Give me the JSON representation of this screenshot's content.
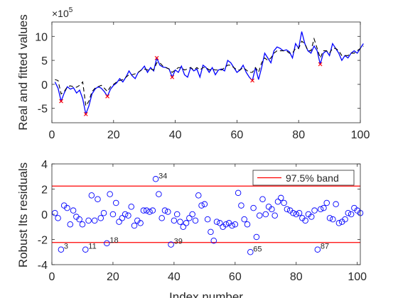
{
  "chart_data": [
    {
      "type": "line",
      "ylabel": "Real and fitted values",
      "multiplier_text": "×10",
      "multiplier_exp": "5",
      "xlim": [
        0,
        100
      ],
      "ylim": [
        -8,
        13
      ],
      "xticks": [
        0,
        20,
        40,
        60,
        80,
        100
      ],
      "yticks": [
        -5,
        0,
        5,
        10
      ],
      "tick_labels_x": [
        "0",
        "20",
        "40",
        "60",
        "80",
        "100"
      ],
      "tick_labels_y": [
        "-5",
        "0",
        "5",
        "10"
      ],
      "series": [
        {
          "style": "solid",
          "color": "#0000ff",
          "values": [
            0.5,
            -0.8,
            -3.5,
            -1.8,
            -0.5,
            -1.0,
            -0.7,
            -1.8,
            -1.2,
            -3.0,
            -6.2,
            -4.5,
            -2.0,
            -1.0,
            -0.5,
            -0.8,
            -1.5,
            -2.5,
            -1.0,
            -0.2,
            0.3,
            1.2,
            0.5,
            1.5,
            2.8,
            1.8,
            1.2,
            2.5,
            3.0,
            3.8,
            2.5,
            3.5,
            2.8,
            5.5,
            4.0,
            3.6,
            3.5,
            3.2,
            1.5,
            3.0,
            2.5,
            3.8,
            2.0,
            1.5,
            3.5,
            2.8,
            3.2,
            1.5,
            4.0,
            3.5,
            2.5,
            3.5,
            2.0,
            3.0,
            3.2,
            2.8,
            5.0,
            4.5,
            3.5,
            2.5,
            3.0,
            4.0,
            2.5,
            1.5,
            0.8,
            3.5,
            1.0,
            3.5,
            6.5,
            5.5,
            4.5,
            7.0,
            7.8,
            7.5,
            7.0,
            7.2,
            6.8,
            5.5,
            8.5,
            7.5,
            11.0,
            8.5,
            7.0,
            6.5,
            8.0,
            7.0,
            4.2,
            6.5,
            7.0,
            6.0,
            8.5,
            7.5,
            6.5,
            5.0,
            6.0,
            5.5,
            6.5,
            7.0,
            6.5,
            7.5,
            8.5
          ]
        },
        {
          "style": "dashed",
          "color": "#000000",
          "values": [
            1.0,
            0.8,
            -2.0,
            -1.5,
            -0.5,
            -0.3,
            -0.5,
            -0.6,
            -0.2,
            0.5,
            -4.5,
            -3.5,
            -1.5,
            -0.8,
            -0.5,
            -0.2,
            -0.8,
            -1.5,
            -0.5,
            0.0,
            0.5,
            0.8,
            1.0,
            1.5,
            2.0,
            2.0,
            2.2,
            2.5,
            3.0,
            3.2,
            3.0,
            3.2,
            3.0,
            4.5,
            4.5,
            3.8,
            3.5,
            3.2,
            2.5,
            3.0,
            3.5,
            3.5,
            3.0,
            3.2,
            3.5,
            3.0,
            3.5,
            3.0,
            3.5,
            3.5,
            3.0,
            3.2,
            3.0,
            3.0,
            3.0,
            3.5,
            4.0,
            4.0,
            3.5,
            3.0,
            3.0,
            3.5,
            3.0,
            2.5,
            2.5,
            3.5,
            2.5,
            4.5,
            5.5,
            5.0,
            5.5,
            6.5,
            7.0,
            7.0,
            7.0,
            7.0,
            6.5,
            6.5,
            7.5,
            7.5,
            9.0,
            8.5,
            7.0,
            7.0,
            9.5,
            7.5,
            5.5,
            7.0,
            7.0,
            6.5,
            7.5,
            7.5,
            7.0,
            6.0,
            6.0,
            6.0,
            6.5,
            6.5,
            7.0,
            7.5,
            8.0
          ]
        }
      ],
      "outliers": [
        {
          "x": 3,
          "y": -3.5
        },
        {
          "x": 11,
          "y": -6.2
        },
        {
          "x": 18,
          "y": -2.5
        },
        {
          "x": 34,
          "y": 5.5
        },
        {
          "x": 39,
          "y": 1.5
        },
        {
          "x": 65,
          "y": 0.8
        },
        {
          "x": 87,
          "y": 4.2
        }
      ]
    },
    {
      "type": "scatter",
      "xlabel": "Index number",
      "ylabel": "Robust lts residuals",
      "xlim": [
        0,
        101
      ],
      "ylim": [
        -4,
        4
      ],
      "xticks": [
        0,
        20,
        40,
        60,
        80,
        100
      ],
      "yticks": [
        -4,
        -2,
        0,
        2,
        4
      ],
      "tick_labels_x": [
        "0",
        "20",
        "40",
        "60",
        "80",
        "100"
      ],
      "tick_labels_y": [
        "-4",
        "-2",
        "0",
        "2",
        "4"
      ],
      "band": {
        "upper": 2.24,
        "lower": -2.24,
        "color": "#ff0000"
      },
      "legend": {
        "label": "97.5% band",
        "placement": "top-right"
      },
      "x": [
        1,
        2,
        3,
        4,
        5,
        6,
        7,
        8,
        9,
        10,
        11,
        12,
        13,
        14,
        15,
        16,
        17,
        18,
        19,
        20,
        21,
        22,
        23,
        24,
        25,
        26,
        27,
        28,
        29,
        30,
        31,
        32,
        33,
        34,
        35,
        36,
        37,
        38,
        39,
        40,
        41,
        42,
        43,
        44,
        45,
        46,
        47,
        48,
        49,
        50,
        51,
        52,
        53,
        54,
        55,
        56,
        57,
        58,
        59,
        60,
        61,
        62,
        63,
        64,
        65,
        66,
        67,
        68,
        69,
        70,
        71,
        72,
        73,
        74,
        75,
        76,
        77,
        78,
        79,
        80,
        81,
        82,
        83,
        84,
        85,
        86,
        87,
        88,
        89,
        90,
        91,
        92,
        93,
        94,
        95,
        96,
        97,
        98,
        99,
        100,
        101
      ],
      "y": [
        0.1,
        -0.3,
        -2.8,
        0.7,
        0.5,
        -0.8,
        0.3,
        -0.2,
        -0.4,
        -0.8,
        -2.8,
        -0.5,
        1.5,
        -0.5,
        1.2,
        -0.3,
        0.1,
        -2.3,
        1.6,
        0.0,
        0.9,
        -0.6,
        -0.3,
        0.0,
        -0.1,
        0.6,
        -0.9,
        -0.5,
        -0.7,
        0.3,
        0.3,
        0.2,
        0.3,
        2.8,
        1.6,
        -0.3,
        0.3,
        0.2,
        -2.4,
        -0.5,
        0.0,
        -0.6,
        -1.0,
        -0.7,
        -0.3,
        0.0,
        -0.5,
        1.5,
        0.7,
        0.8,
        -0.4,
        -1.4,
        -2.1,
        -0.6,
        -0.7,
        -1.0,
        -0.8,
        -0.7,
        -0.9,
        -0.8,
        1.7,
        0.7,
        -0.4,
        -0.8,
        -3.0,
        0.5,
        -1.8,
        -0.1,
        1.2,
        0.0,
        0.6,
        0.4,
        -0.1,
        1.0,
        1.3,
        0.9,
        0.4,
        0.3,
        0.1,
        0.0,
        0.1,
        -0.3,
        -0.5,
        0.0,
        -0.2,
        0.3,
        -2.8,
        0.4,
        0.5,
        0.9,
        -0.3,
        -0.4,
        0.8,
        -0.7,
        -0.6,
        -0.4,
        0.1,
        0.0,
        0.5,
        0.3,
        0.1
      ],
      "labeled_points": [
        {
          "x": 3,
          "y": -2.8,
          "label": "3"
        },
        {
          "x": 11,
          "y": -2.8,
          "label": "11"
        },
        {
          "x": 18,
          "y": -2.3,
          "label": "18"
        },
        {
          "x": 34,
          "y": 2.8,
          "label": "34"
        },
        {
          "x": 39,
          "y": -2.4,
          "label": "39"
        },
        {
          "x": 65,
          "y": -3.0,
          "label": "65"
        },
        {
          "x": 87,
          "y": -2.8,
          "label": "87"
        }
      ]
    }
  ]
}
